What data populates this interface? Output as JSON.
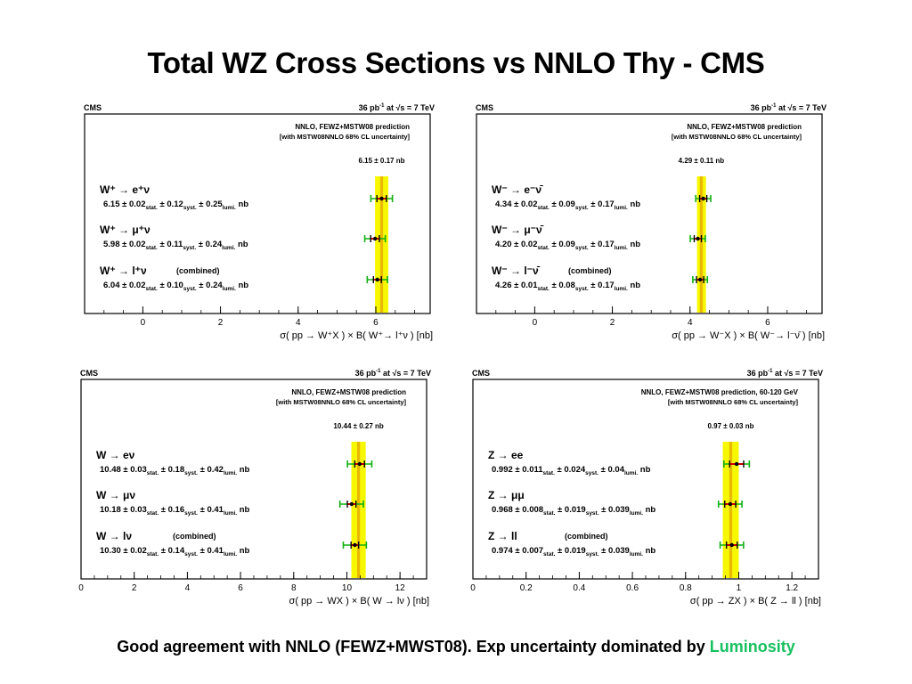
{
  "slide": {
    "title": "Total WZ Cross Sections vs NNLO Thy - CMS",
    "footer_text": "Good agreement with NNLO (FEWZ+MWST08). Exp uncertainty dominated by",
    "footer_highlight": "Luminosity",
    "colors": {
      "highlight": "#18c060",
      "band_outer": "#f7f700",
      "band_inner": "#e9b800",
      "stat_bar": "#d00000",
      "total_bar": "#10b010"
    }
  },
  "chart_data": [
    {
      "type": "scatter",
      "experiment": "CMS",
      "lumi": "36 pb",
      "lumi_exp": "-1",
      "energy_prefix": "at",
      "energy": "s = 7 TeV",
      "prediction_line1": "NNLO, FEWZ+MSTW08 prediction",
      "prediction_line2": "[with MSTW08NNLO 68% CL uncertainty]",
      "prediction_label": "6.15 ± 0.17 nb",
      "prediction": {
        "value": 6.15,
        "unc": 0.17
      },
      "xlim": [
        -1.5,
        7.4
      ],
      "xticks": [
        0,
        2,
        4,
        6
      ],
      "xlabel": "σ( pp → W⁺X ) × B( W⁺→ l⁺ν )   [nb]",
      "measurements": [
        {
          "label": "W⁺ → e⁺ν",
          "value": 6.15,
          "stat": 0.02,
          "syst": 0.12,
          "lumi": 0.25
        },
        {
          "label": "W⁺ → μ⁺ν",
          "value": 5.98,
          "stat": 0.02,
          "syst": 0.11,
          "lumi": 0.24
        },
        {
          "label": "W⁺ → l⁺ν",
          "note": "(combined)",
          "value": 6.04,
          "stat": 0.02,
          "syst": 0.1,
          "lumi": 0.24
        }
      ]
    },
    {
      "type": "scatter",
      "experiment": "CMS",
      "lumi": "36 pb",
      "lumi_exp": "-1",
      "energy_prefix": "at",
      "energy": "s = 7 TeV",
      "prediction_line1": "NNLO, FEWZ+MSTW08 prediction",
      "prediction_line2": "[with MSTW08NNLO 68% CL uncertainty]",
      "prediction_label": "4.29 ± 0.11 nb",
      "prediction": {
        "value": 4.29,
        "unc": 0.11
      },
      "xlim": [
        -1.5,
        7.4
      ],
      "xticks": [
        0,
        2,
        4,
        6
      ],
      "xlabel": "σ( pp → W⁻X ) × B( W⁻→ l⁻ν̄ )   [nb]",
      "measurements": [
        {
          "label": "W⁻ → e⁻ν̄",
          "value": 4.34,
          "stat": 0.02,
          "syst": 0.09,
          "lumi": 0.17
        },
        {
          "label": "W⁻ → μ⁻ν̄",
          "value": 4.2,
          "stat": 0.02,
          "syst": 0.09,
          "lumi": 0.17
        },
        {
          "label": "W⁻ → l⁻ν̄",
          "note": "(combined)",
          "value": 4.26,
          "stat": 0.01,
          "syst": 0.08,
          "lumi": 0.17
        }
      ]
    },
    {
      "type": "scatter",
      "experiment": "CMS",
      "lumi": "36 pb",
      "lumi_exp": "-1",
      "energy_prefix": "at",
      "energy": "s = 7 TeV",
      "prediction_line1": "NNLO, FEWZ+MSTW08 prediction",
      "prediction_line2": "[with MSTW08NNLO 68% CL uncertainty]",
      "prediction_label": "10.44 ± 0.27 nb",
      "prediction": {
        "value": 10.44,
        "unc": 0.27
      },
      "xlim": [
        0,
        13
      ],
      "xticks": [
        0,
        2,
        4,
        6,
        8,
        10,
        12
      ],
      "xlabel": "σ( pp → WX ) × B( W → lν )   [nb]",
      "measurements": [
        {
          "label": "W → eν",
          "value": 10.48,
          "stat": 0.03,
          "syst": 0.18,
          "lumi": 0.42
        },
        {
          "label": "W → μν",
          "value": 10.18,
          "stat": 0.03,
          "syst": 0.16,
          "lumi": 0.41
        },
        {
          "label": "W → lν",
          "note": "(combined)",
          "value": 10.3,
          "stat": 0.02,
          "syst": 0.14,
          "lumi": 0.41
        }
      ]
    },
    {
      "type": "scatter",
      "experiment": "CMS",
      "lumi": "36 pb",
      "lumi_exp": "-1",
      "energy_prefix": "at",
      "energy": "s = 7 TeV",
      "prediction_line1": "NNLO, FEWZ+MSTW08 prediction, 60-120 GeV",
      "prediction_line2": "[with MSTW08NNLO 68% CL uncertainty]",
      "prediction_label": "0.97 ± 0.03 nb",
      "prediction": {
        "value": 0.97,
        "unc": 0.03
      },
      "xlim": [
        0,
        1.3
      ],
      "xticks": [
        0,
        0.2,
        0.4,
        0.6,
        0.8,
        1,
        1.2
      ],
      "xlabel": "σ( pp → ZX ) × B( Z → ll )   [nb]",
      "measurements": [
        {
          "label": "Z → ee",
          "value": 0.992,
          "stat": 0.011,
          "syst": 0.024,
          "lumi": 0.04
        },
        {
          "label": "Z → μμ",
          "value": 0.968,
          "stat": 0.008,
          "syst": 0.019,
          "lumi": 0.039
        },
        {
          "label": "Z → ll",
          "note": "(combined)",
          "value": 0.974,
          "stat": 0.007,
          "syst": 0.019,
          "lumi": 0.039
        }
      ]
    }
  ]
}
